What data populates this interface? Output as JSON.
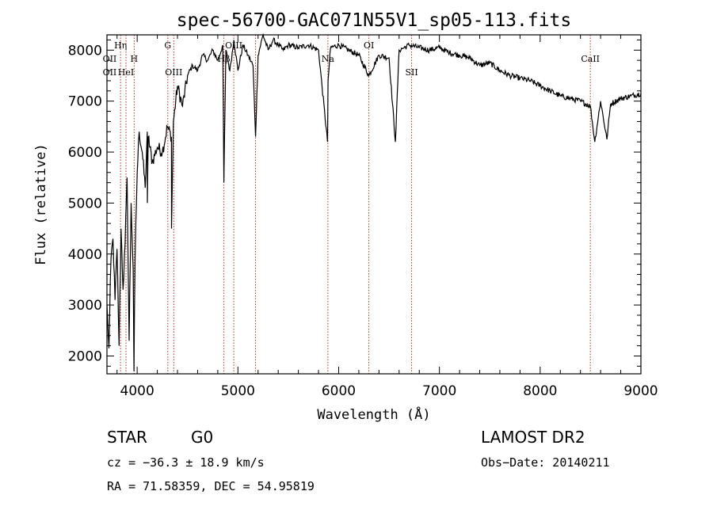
{
  "chart_data": {
    "type": "line",
    "title": "spec-56700-GAC071N55V1_sp05-113.fits",
    "xlabel": "Wavelength (Å)",
    "ylabel": "Flux (relative)",
    "xlim": [
      3700,
      9000
    ],
    "ylim": [
      1650,
      8300
    ],
    "x_ticks": [
      4000,
      5000,
      6000,
      7000,
      8000,
      9000
    ],
    "y_ticks": [
      2000,
      3000,
      4000,
      5000,
      6000,
      7000,
      8000
    ],
    "grid": false,
    "series": [
      {
        "x": [
          3700,
          3720,
          3740,
          3760,
          3780,
          3800,
          3820,
          3840,
          3860,
          3880,
          3900,
          3920,
          3940,
          3960,
          3968,
          3980,
          4000,
          4020,
          4050,
          4080,
          4100,
          4101,
          4110,
          4150,
          4200,
          4250,
          4300,
          4340,
          4341,
          4360,
          4400,
          4450,
          4500,
          4550,
          4600,
          4650,
          4700,
          4750,
          4800,
          4850,
          4861,
          4880,
          4920,
          4960,
          5000,
          5050,
          5100,
          5150,
          5175,
          5200,
          5250,
          5300,
          5350,
          5400,
          5450,
          5500,
          5600,
          5700,
          5800,
          5889,
          5895,
          5920,
          6000,
          6100,
          6200,
          6300,
          6400,
          6500,
          6563,
          6600,
          6650,
          6700,
          6800,
          6900,
          7000,
          7100,
          7200,
          7300,
          7400,
          7500,
          7600,
          7700,
          7800,
          7900,
          8000,
          8100,
          8200,
          8300,
          8400,
          8498,
          8542,
          8600,
          8662,
          8700,
          8800,
          8900,
          9000
        ],
        "y": [
          3000,
          2150,
          3900,
          4300,
          3100,
          4100,
          2200,
          4500,
          3300,
          4200,
          5500,
          2300,
          5000,
          3700,
          1700,
          4000,
          5600,
          6400,
          6000,
          5300,
          6400,
          5000,
          6300,
          5800,
          6100,
          6000,
          6500,
          6300,
          4500,
          6600,
          7300,
          6900,
          7500,
          7700,
          7600,
          7900,
          7800,
          8000,
          7800,
          8100,
          5400,
          8000,
          7600,
          8200,
          7600,
          8100,
          7900,
          7700,
          6300,
          7900,
          8300,
          8000,
          8200,
          8100,
          8000,
          8100,
          8050,
          8100,
          8000,
          6200,
          7400,
          8050,
          8100,
          8000,
          7900,
          7500,
          7900,
          7850,
          6200,
          8000,
          8050,
          8100,
          8050,
          8000,
          8050,
          7950,
          7900,
          7850,
          7700,
          7750,
          7600,
          7500,
          7450,
          7400,
          7300,
          7200,
          7100,
          7050,
          7000,
          6900,
          6200,
          7000,
          6250,
          6950,
          7050,
          7100,
          7150
        ]
      }
    ],
    "line_markers": [
      {
        "label": "Hη",
        "x": 3835,
        "row": 0
      },
      {
        "label": "OII",
        "x": 3727,
        "row": 1
      },
      {
        "label": "H",
        "x": 3970,
        "row": 1
      },
      {
        "label": "OII",
        "x": 3727,
        "row": 2
      },
      {
        "label": "HeI",
        "x": 3889,
        "row": 2
      },
      {
        "label": "G",
        "x": 4304,
        "row": 0
      },
      {
        "label": "OIII",
        "x": 4363,
        "row": 2
      },
      {
        "label": "OIII",
        "x": 4959,
        "row": 0
      },
      {
        "label": "Hβ",
        "x": 4861,
        "row": 1
      },
      {
        "label": "OI",
        "x": 6300,
        "row": 0
      },
      {
        "label": "Na",
        "x": 5893,
        "row": 1
      },
      {
        "label": "SII",
        "x": 6724,
        "row": 2
      },
      {
        "label": "CaII",
        "x": 8498,
        "row": 1
      }
    ],
    "marker_lines_x": [
      3835,
      3889,
      3970,
      4304,
      4363,
      4861,
      4959,
      5175,
      5893,
      6300,
      6724,
      8498
    ]
  },
  "info": {
    "class": "STAR",
    "subclass": "G0",
    "survey": "LAMOST DR2",
    "cz": "cz = −36.3 ± 18.9 km/s",
    "obs_date": "Obs−Date: 20140211",
    "coords": "RA =  71.58359, DEC =  54.95819"
  },
  "colors": {
    "spectrum": "#000000",
    "marker_line": "#b03020",
    "axes": "#000000"
  }
}
